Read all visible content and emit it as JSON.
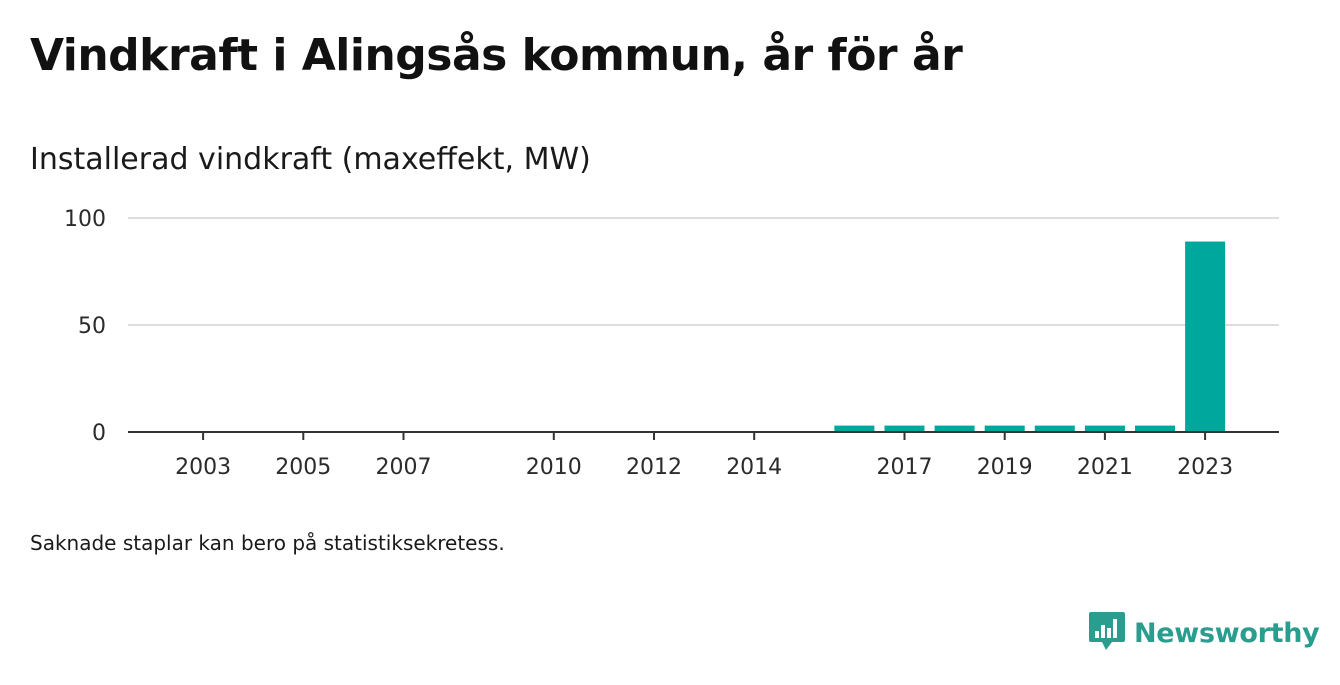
{
  "title": "Vindkraft i Alingsås kommun, år för år",
  "subtitle": "Installerad vindkraft (maxeffekt, MW)",
  "note": "Saknade staplar kan bero på statistiksekretess.",
  "brand": {
    "name": "Newsworthy",
    "logo_icon": "bar-chart-speech-bubble-icon"
  },
  "colors": {
    "bar": "#00a79d",
    "grid": "#dddddd",
    "axis": "#333333",
    "brand": "#2a9d8f"
  },
  "chart_data": {
    "type": "bar",
    "title": "Vindkraft i Alingsås kommun, år för år",
    "ylabel": "Installerad vindkraft (maxeffekt, MW)",
    "xlabel": "",
    "ylim": [
      0,
      100
    ],
    "yticks": [
      0,
      50,
      100
    ],
    "grid": true,
    "categories": [
      "2002",
      "2003",
      "2004",
      "2005",
      "2006",
      "2007",
      "2008",
      "2009",
      "2010",
      "2011",
      "2012",
      "2013",
      "2014",
      "2015",
      "2016",
      "2017",
      "2018",
      "2019",
      "2020",
      "2021",
      "2022",
      "2023"
    ],
    "xtick_labels": [
      "2003",
      "2005",
      "2007",
      "2010",
      "2012",
      "2014",
      "2017",
      "2019",
      "2021",
      "2023"
    ],
    "values": [
      null,
      0,
      0,
      0,
      0,
      0,
      null,
      null,
      0,
      0,
      0,
      0,
      0,
      null,
      3,
      3,
      3,
      3,
      3,
      3,
      3,
      89
    ]
  }
}
